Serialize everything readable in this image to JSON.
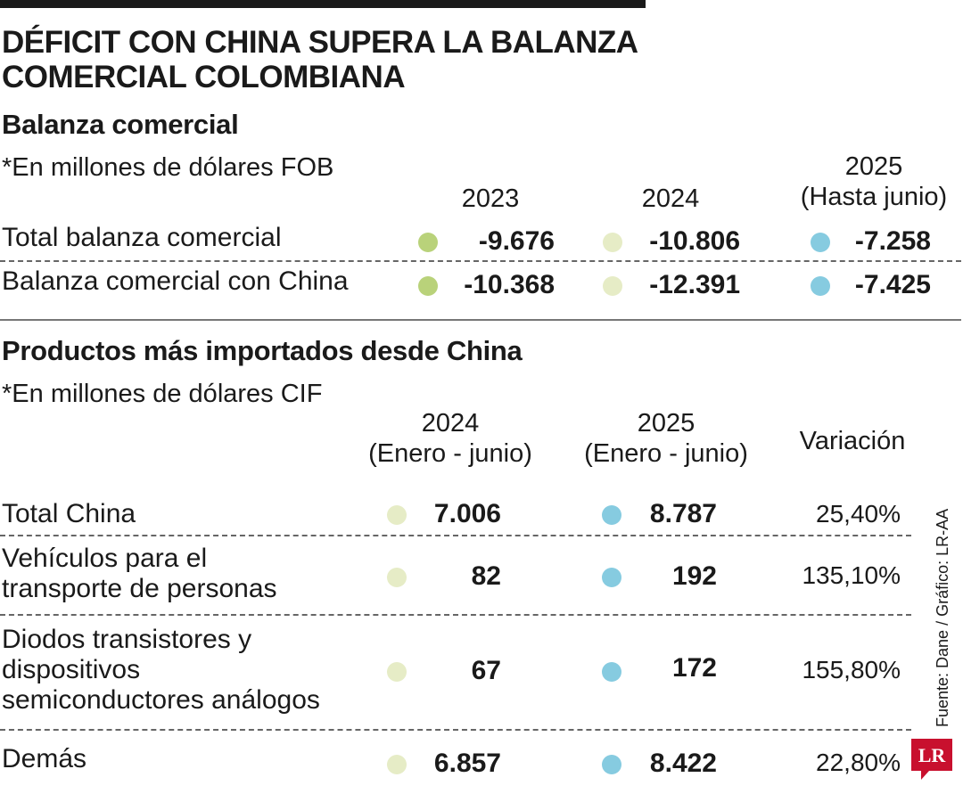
{
  "title_line1": "DÉFICIT CON CHINA SUPERA LA BALANZA",
  "title_line2": "COMERCIAL COLOMBIANA",
  "colors": {
    "y2023": "#b9d27a",
    "y2024": "#e6ecc6",
    "y2025": "#86cbe0",
    "logo": "#c8102e"
  },
  "section1": {
    "title": "Balanza comercial",
    "unit_note": "*En millones de dólares FOB",
    "headers": {
      "y2023": "2023",
      "y2024": "2024",
      "y2025_line1": "2025",
      "y2025_line2": "(Hasta junio)"
    },
    "rows": [
      {
        "label": "Total balanza comercial",
        "v2023": "-9.676",
        "v2024": "-10.806",
        "v2025": "-7.258"
      },
      {
        "label": "Balanza comercial con China",
        "v2023": "-10.368",
        "v2024": "-12.391",
        "v2025": "-7.425"
      }
    ]
  },
  "section2": {
    "title": "Productos más importados desde China",
    "unit_note": "*En millones de dólares CIF",
    "headers": {
      "y2024_line1": "2024",
      "y2024_line2": "(Enero - junio)",
      "y2025_line1": "2025",
      "y2025_line2": "(Enero - junio)",
      "variation": "Variación"
    },
    "rows": [
      {
        "label_lines": [
          "Total China"
        ],
        "v2024": "7.006",
        "v2025": "8.787",
        "variation": "25,40%"
      },
      {
        "label_lines": [
          "Vehículos para el",
          "transporte de personas"
        ],
        "v2024": "82",
        "v2025": "192",
        "variation": "135,10%"
      },
      {
        "label_lines": [
          "Diodos transistores y",
          "dispositivos",
          "semiconductores análogos"
        ],
        "v2024": "67",
        "v2025": "172",
        "variation": "155,80%"
      },
      {
        "label_lines": [
          "Demás"
        ],
        "v2024": "6.857",
        "v2025": "8.422",
        "variation": "22,80%"
      }
    ]
  },
  "source": "Fuente: Dane / Gráfico: LR-AA",
  "logo_text": "LR",
  "chart_data": [
    {
      "type": "table",
      "title": "Balanza comercial",
      "columns": [
        "2023",
        "2024",
        "2025 (Hasta junio)"
      ],
      "rows": [
        {
          "name": "Total balanza comercial",
          "values": [
            -9676,
            -10806,
            -7258
          ]
        },
        {
          "name": "Balanza comercial con China",
          "values": [
            -10368,
            -12391,
            -7425
          ]
        }
      ]
    },
    {
      "type": "table",
      "title": "Productos más importados desde China",
      "columns": [
        "2024 (Enero - junio)",
        "2025 (Enero - junio)",
        "Variación"
      ],
      "rows": [
        {
          "name": "Total China",
          "values": [
            7006,
            8787,
            25.4
          ]
        },
        {
          "name": "Vehículos para el transporte de personas",
          "values": [
            82,
            192,
            135.1
          ]
        },
        {
          "name": "Diodos transistores y dispositivos semiconductores análogos",
          "values": [
            67,
            172,
            155.8
          ]
        },
        {
          "name": "Demás",
          "values": [
            6857,
            8422,
            22.8
          ]
        }
      ]
    }
  ]
}
